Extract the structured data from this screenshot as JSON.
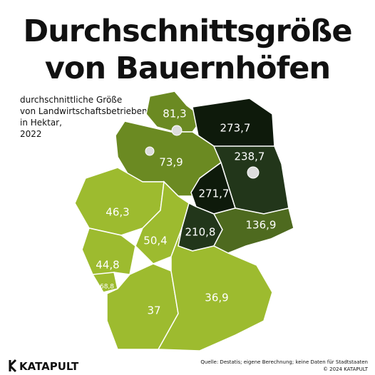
{
  "title": [
    "Durchschnittsgröße",
    "von Bauernhöfen"
  ],
  "subtitle": [
    "durchschnittliche Größe",
    "von Landwirtschaftsbetrieben",
    "in Hektar,",
    "2022"
  ],
  "regions": [
    {
      "value": 81.3,
      "label": "81,3",
      "color": "#6b8a22"
    },
    {
      "value": 273.7,
      "label": "273,7",
      "color": "#0e1a0b"
    },
    {
      "value": 73.9,
      "label": "73,9",
      "color": "#6b8a22"
    },
    {
      "value": 238.7,
      "label": "238,7",
      "color": "#22361a"
    },
    {
      "value": 271.7,
      "label": "271,7",
      "color": "#0e1a0b"
    },
    {
      "value": 46.3,
      "label": "46,3",
      "color": "#9dbb2f"
    },
    {
      "value": 50.4,
      "label": "50,4",
      "color": "#9dbb2f"
    },
    {
      "value": 210.8,
      "label": "210,8",
      "color": "#22361a"
    },
    {
      "value": 136.9,
      "label": "136,9",
      "color": "#4e6a1f"
    },
    {
      "value": 44.8,
      "label": "44,8",
      "color": "#9dbb2f"
    },
    {
      "value": 68.8,
      "label": "68,8",
      "color": "#9dbb2f"
    },
    {
      "value": 37,
      "label": "37",
      "color": "#9dbb2f"
    },
    {
      "value": 36.9,
      "label": "36,9",
      "color": "#9dbb2f"
    }
  ],
  "source": "Quelle: Destatis; eigene Berechnung; keine Daten für Stadtstaaten",
  "copyright": "© 2024 KATAPULT",
  "logo": "KATAPULT"
}
